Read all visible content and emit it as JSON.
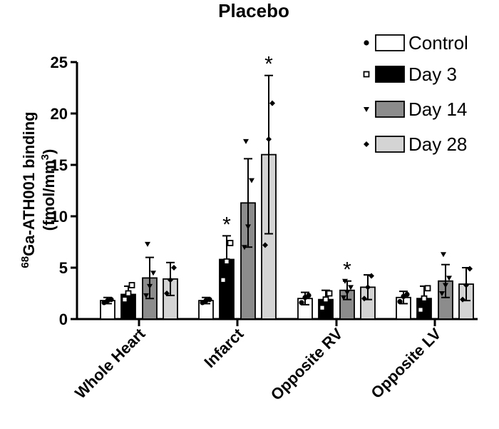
{
  "chart_data": {
    "type": "bar",
    "title": "Placebo",
    "ylabel": "68Ga-ATH001 binding (fmol/mm3)",
    "ylabel_parts": {
      "sup1": "68",
      "main": "Ga-ATH001 binding",
      "line2": "(fmol/mm",
      "sup2": "3",
      "close": ")"
    },
    "ylim": [
      0,
      25
    ],
    "yticks": [
      "0",
      "5",
      "10",
      "15",
      "20",
      "25"
    ],
    "ytick_values": [
      0,
      5,
      10,
      15,
      20,
      25
    ],
    "categories": [
      "Whole Heart",
      "Infarct",
      "Opposite RV",
      "Opposite LV"
    ],
    "legend_position": "top-right",
    "series": [
      {
        "name": "Control",
        "marker": "circle",
        "fill": "#ffffff",
        "values": [
          1.8,
          1.8,
          2.0,
          2.1
        ],
        "error": [
          0.3,
          0.3,
          0.6,
          0.6
        ],
        "points": [
          [
            1.6,
            1.8,
            1.9
          ],
          [
            1.6,
            1.8,
            1.9
          ],
          [
            1.6,
            2.1,
            2.3
          ],
          [
            1.7,
            2.2,
            2.4
          ]
        ],
        "significance": [
          "",
          "",
          "",
          ""
        ]
      },
      {
        "name": "Day 3",
        "marker": "square",
        "fill": "#000000",
        "values": [
          2.4,
          5.8,
          1.9,
          2.0
        ],
        "error": [
          0.8,
          2.3,
          0.9,
          1.2
        ],
        "points": [
          [
            1.9,
            2.5,
            3.3
          ],
          [
            3.8,
            5.6,
            7.4
          ],
          [
            1.1,
            1.9,
            2.5
          ],
          [
            0.9,
            2.0,
            3.0
          ]
        ],
        "significance": [
          "",
          "*",
          "",
          ""
        ]
      },
      {
        "name": "Day 14",
        "marker": "triangle",
        "fill": "#8c8c8c",
        "values": [
          4.0,
          11.3,
          2.8,
          3.7
        ],
        "error": [
          2.0,
          4.3,
          0.9,
          1.6
        ],
        "points": [
          [
            2.3,
            3.2,
            4.5,
            7.3
          ],
          [
            7.0,
            9.0,
            13.5,
            17.3
          ],
          [
            2.1,
            2.6,
            3.1,
            3.7
          ],
          [
            2.5,
            3.3,
            4.0,
            6.3
          ]
        ],
        "significance": [
          "",
          "",
          "*",
          ""
        ]
      },
      {
        "name": "Day 28",
        "marker": "diamond",
        "fill": "#d4d4d4",
        "values": [
          3.9,
          16.0,
          3.1,
          3.4
        ],
        "error": [
          1.6,
          7.7,
          1.2,
          1.6
        ],
        "points": [
          [
            2.5,
            3.8,
            5.0
          ],
          [
            7.2,
            17.5,
            21.0
          ],
          [
            2.0,
            3.1,
            4.2
          ],
          [
            1.9,
            3.3,
            4.9
          ]
        ],
        "significance": [
          "",
          "*",
          "",
          ""
        ]
      }
    ]
  }
}
